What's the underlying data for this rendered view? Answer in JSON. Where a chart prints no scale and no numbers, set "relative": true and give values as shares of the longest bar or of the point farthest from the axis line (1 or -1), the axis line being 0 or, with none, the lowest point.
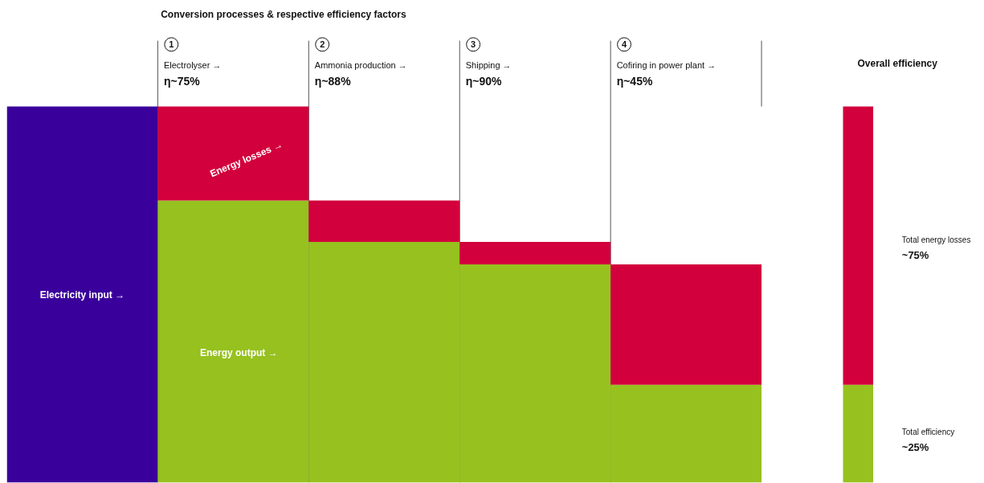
{
  "chart_data": {
    "type": "bar",
    "stacked": true,
    "relative": true,
    "title": "Conversion processes & respective efficiency factors",
    "categories": [
      "Electricity input →",
      "Electrolyser →",
      "Ammonia production →",
      "Shipping →",
      "Cofiring in power plant →",
      "Overall efficiency"
    ],
    "series": [
      {
        "color": "#3a009c",
        "values": [
          1,
          null,
          null,
          null,
          null,
          null
        ]
      },
      {
        "name": "Energy output →",
        "color": "#96c11f",
        "values": [
          null,
          0.75,
          0.64,
          0.58,
          0.26,
          0.26
        ]
      },
      {
        "name": "Energy losses →",
        "color": "#d2003c",
        "values": [
          null,
          0.25,
          0.11,
          0.06,
          0.32,
          0.74
        ]
      }
    ],
    "annotations": [
      "1",
      "η~75%",
      "2",
      "η~88%",
      "3",
      "η~90%",
      "4",
      "η~45%",
      "Total energy losses",
      "~75%",
      "Total efficiency",
      "~25%"
    ],
    "grid": false
  }
}
